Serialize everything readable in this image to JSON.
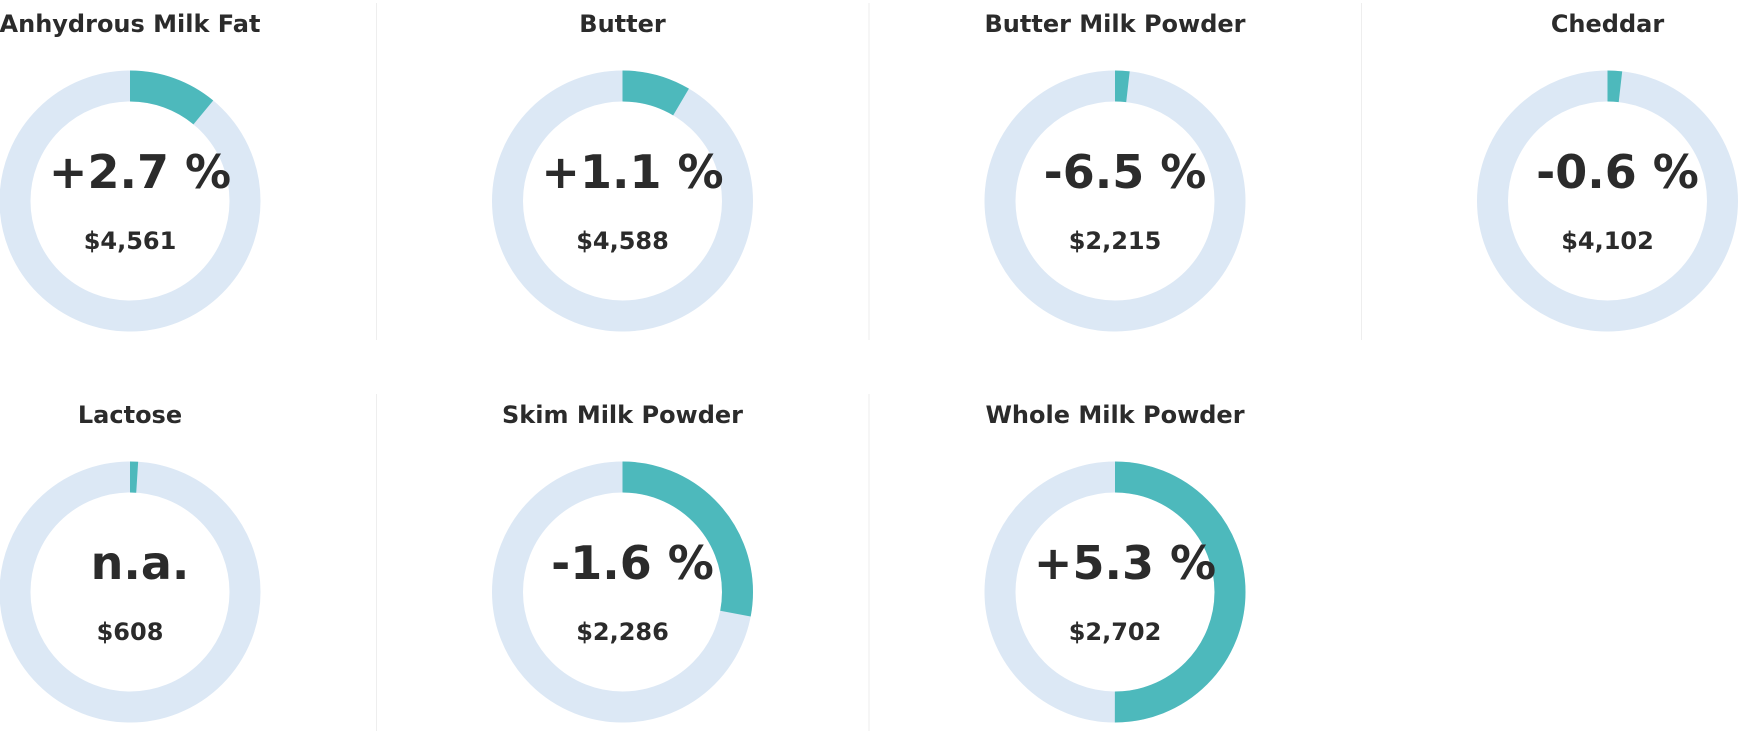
{
  "cards": [
    {
      "title": "Anhydrous Milk Fat",
      "change": "+2.7 %",
      "price": "$4,561",
      "gauge": 11
    },
    {
      "title": "Butter",
      "change": "+1.1 %",
      "price": "$4,588",
      "gauge": 8.5
    },
    {
      "title": "Butter Milk Powder",
      "change": "-6.5 %",
      "price": "$2,215",
      "gauge": 1.8
    },
    {
      "title": "Cheddar",
      "change": "-0.6 %",
      "price": "$4,102",
      "gauge": 1.8
    },
    {
      "title": "Lactose",
      "change": "n.a.",
      "price": "$608",
      "gauge": 1
    },
    {
      "title": "Skim Milk Powder",
      "change": "-1.6 %",
      "price": "$2,286",
      "gauge": 28
    },
    {
      "title": "Whole Milk Powder",
      "change": "+5.3 %",
      "price": "$2,702",
      "gauge": 50
    }
  ],
  "style": {
    "track_color": "#dce8f5",
    "fill_color": "#4db9bc",
    "columns": 4
  }
}
